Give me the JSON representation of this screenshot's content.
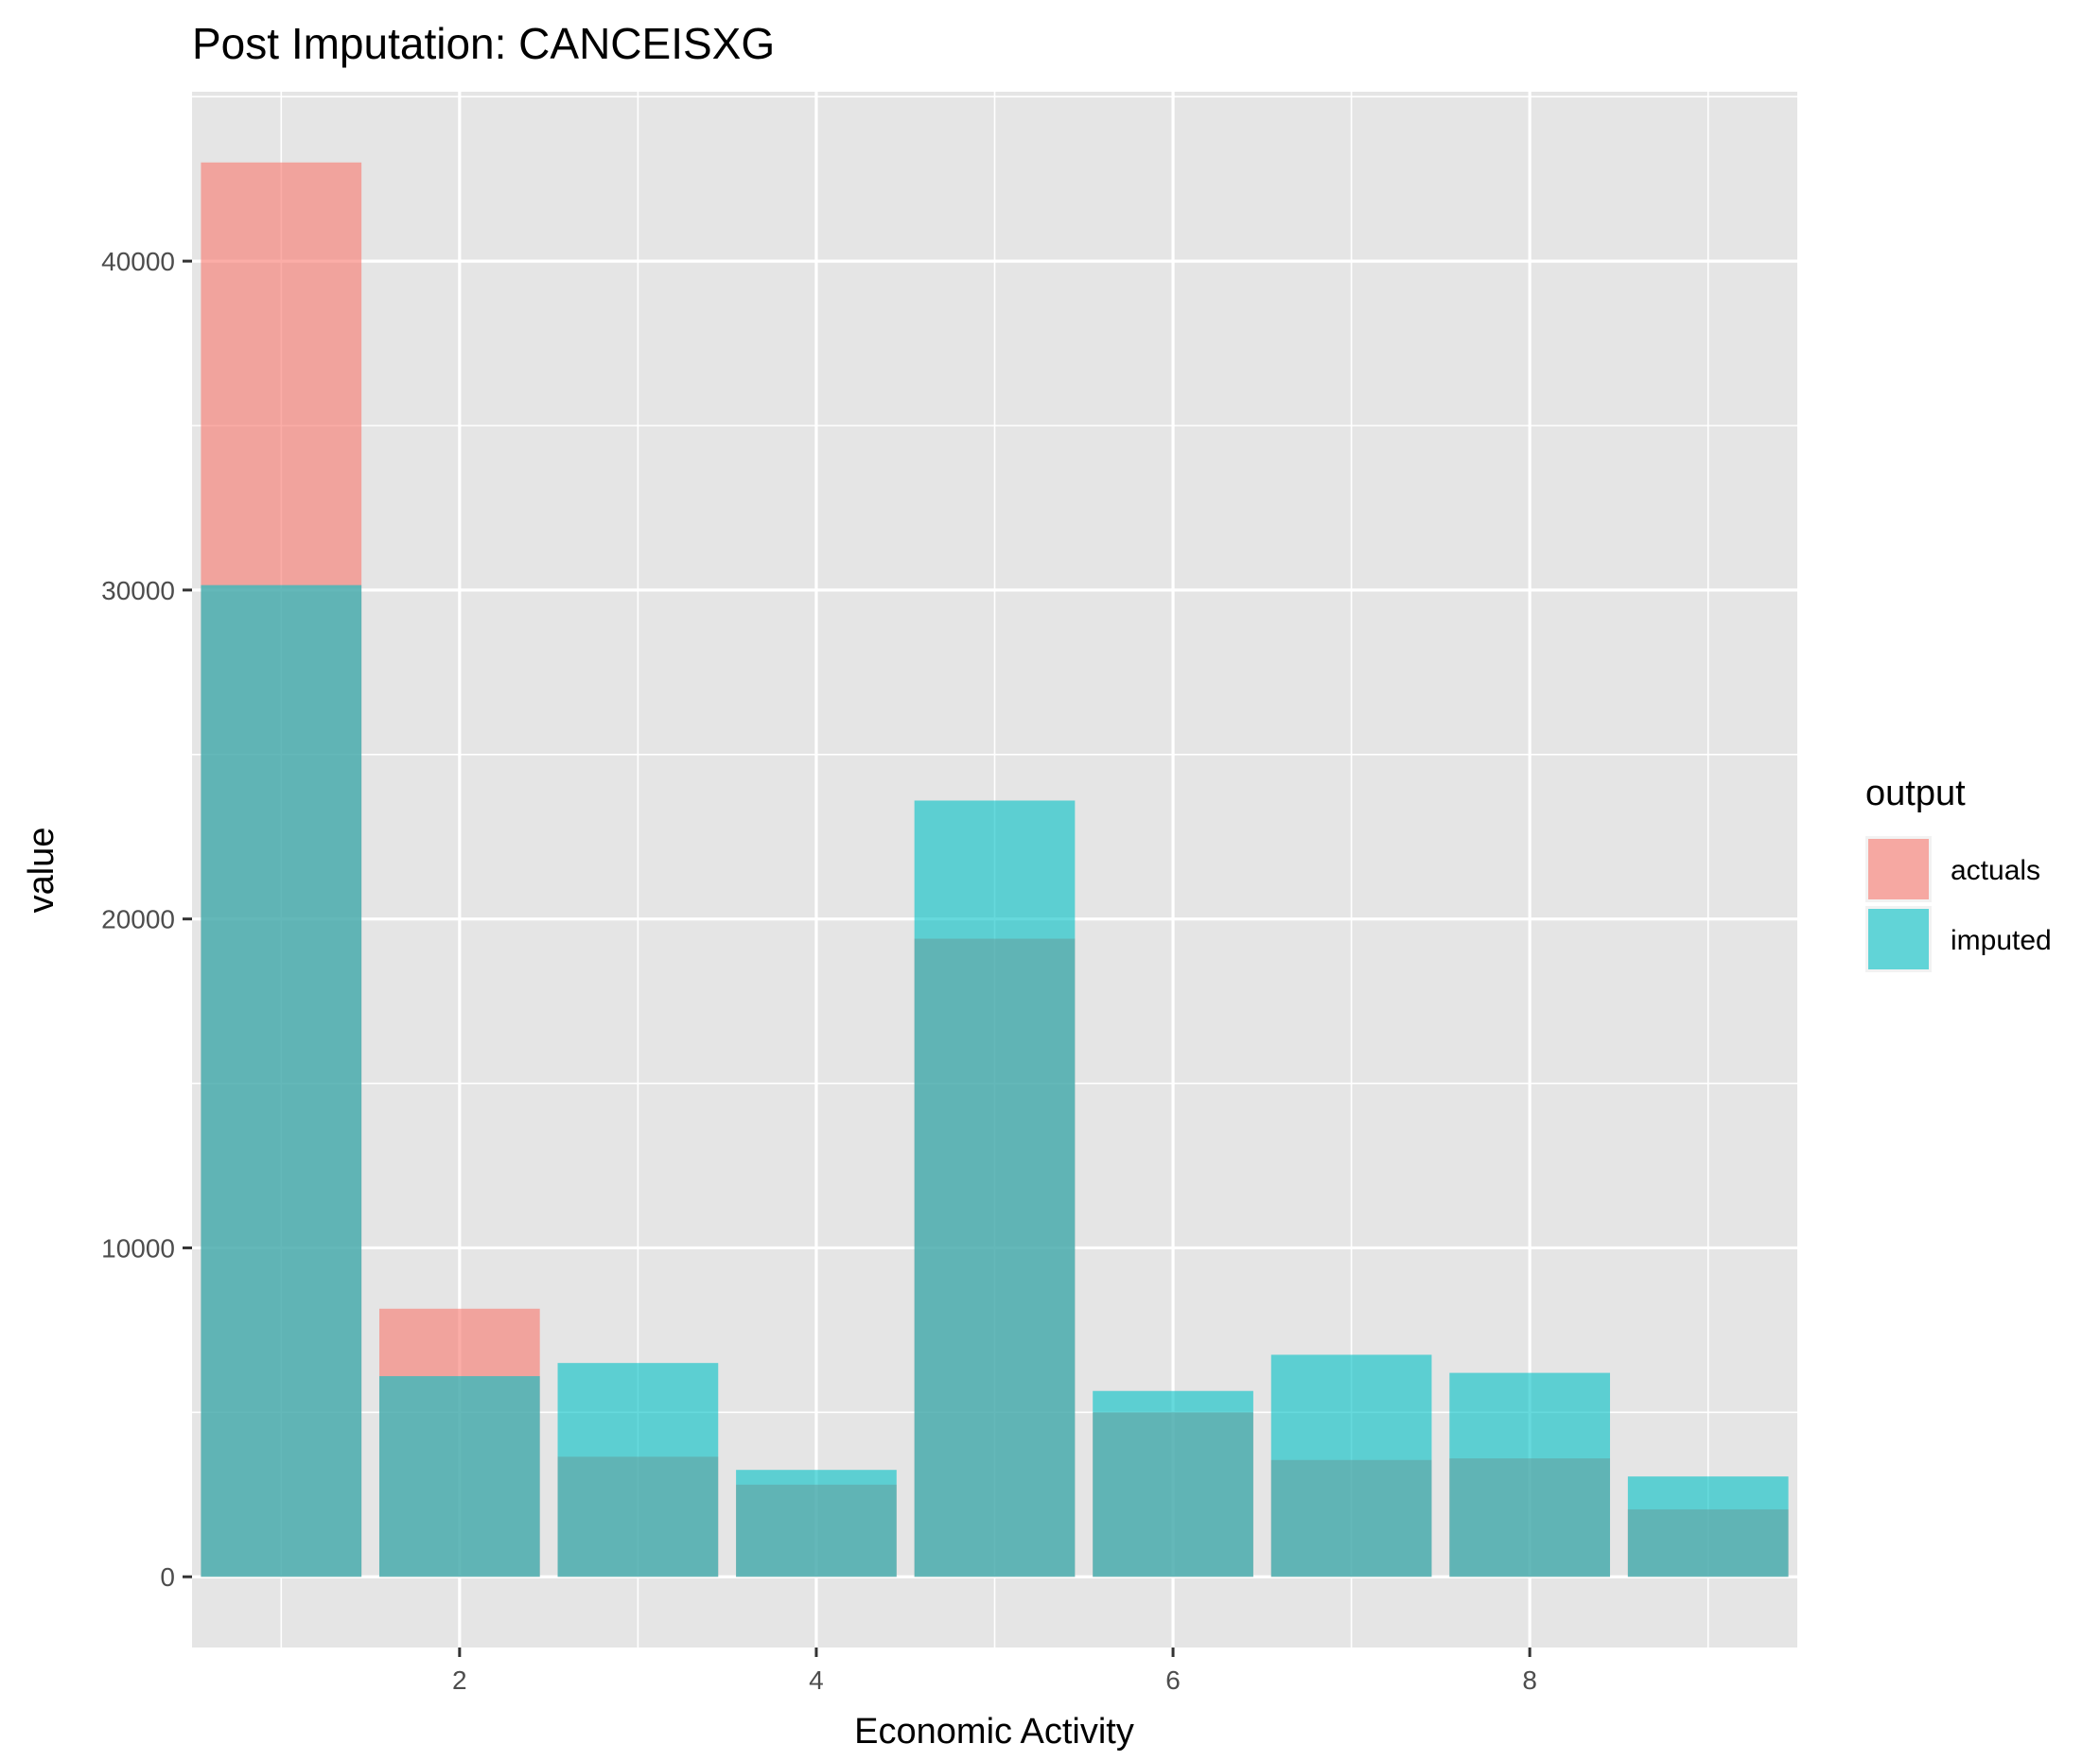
{
  "chart_data": {
    "type": "bar",
    "title": "Post Imputation: CANCEISXG",
    "xlabel": "Economic Activity",
    "ylabel": "value",
    "x": [
      1,
      2,
      3,
      4,
      5,
      6,
      7,
      8,
      9
    ],
    "series": [
      {
        "name": "actuals",
        "values": [
          43000,
          8150,
          3650,
          2800,
          19400,
          5000,
          3550,
          3600,
          2050
        ]
      },
      {
        "name": "imputed",
        "values": [
          30150,
          6100,
          6500,
          3250,
          23600,
          5650,
          6750,
          6200,
          3050
        ]
      }
    ],
    "xlim": [
      0.5,
      9.5
    ],
    "ylim": [
      -2150,
      45150
    ],
    "x_ticks": [
      "2",
      "4",
      "6",
      "8"
    ],
    "y_ticks": [
      "0",
      "10000",
      "20000",
      "30000",
      "40000"
    ],
    "grid": true,
    "legend": {
      "title": "output",
      "position": "right"
    },
    "colors": {
      "actuals": "#F8766D",
      "imputed": "#00BFC4",
      "panel": "#E5E5E5",
      "grid": "#FFFFFF"
    },
    "opacity": 0.6
  }
}
